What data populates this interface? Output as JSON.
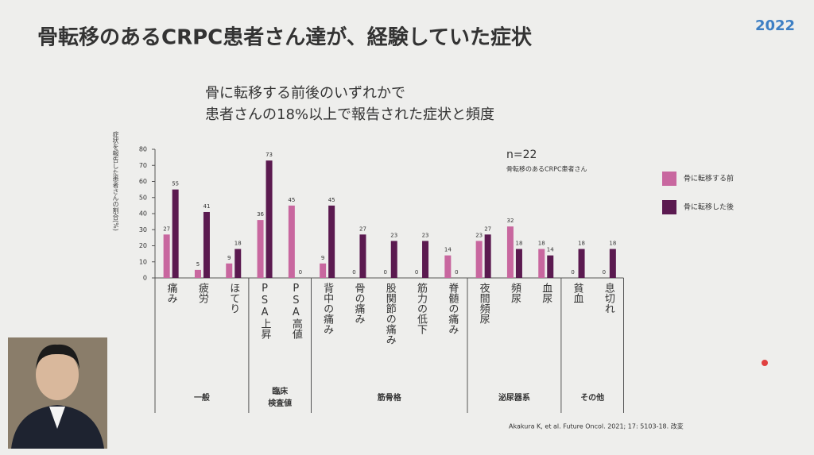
{
  "slide": {
    "title": "骨転移のあるCRPC患者さん達が、経験していた症状",
    "logo": "2022",
    "citation": "Akakura K, et al. Future Oncol. 2021; 17: 5103-18. 改変"
  },
  "chart_data": {
    "type": "bar",
    "title": "骨に転移する前後のいずれかで",
    "subtitle": "患者さんの18%以上で報告された症状と頻度",
    "y_label": "症状を報告した患者さんの割合(%)",
    "annotation": "n=22",
    "annotation_sub": "骨転移のあるCRPC患者さん",
    "groups": [
      {
        "label": "一般",
        "categories": [
          "痛み",
          "疲労",
          "ほてり"
        ]
      },
      {
        "label": "臨床\n検査値",
        "categories": [
          "PSA上昇",
          "PSA高値"
        ]
      },
      {
        "label": "筋骨格",
        "categories": [
          "背中の痛み",
          "骨の痛み",
          "股関節の痛み",
          "筋力の低下",
          "脊髄の痛み"
        ]
      },
      {
        "label": "泌尿器系",
        "categories": [
          "夜間頻尿",
          "頻尿",
          "血尿"
        ]
      },
      {
        "label": "その他",
        "categories": [
          "貧血",
          "息切れ"
        ]
      }
    ],
    "series": [
      {
        "name": "骨に転移する前",
        "color": "#c8679f",
        "values": [
          27,
          5,
          9,
          36,
          45,
          9,
          0,
          0,
          0,
          14,
          23,
          32,
          18,
          0,
          0
        ]
      },
      {
        "name": "骨に転移した後",
        "color": "#5b1a50",
        "values": [
          55,
          41,
          18,
          73,
          0,
          45,
          27,
          23,
          23,
          0,
          27,
          18,
          14,
          18,
          18
        ]
      }
    ],
    "ylim": [
      0,
      80
    ],
    "yticks": [
      0,
      10,
      20,
      30,
      40,
      50,
      60,
      70,
      80
    ],
    "legend": "right"
  }
}
